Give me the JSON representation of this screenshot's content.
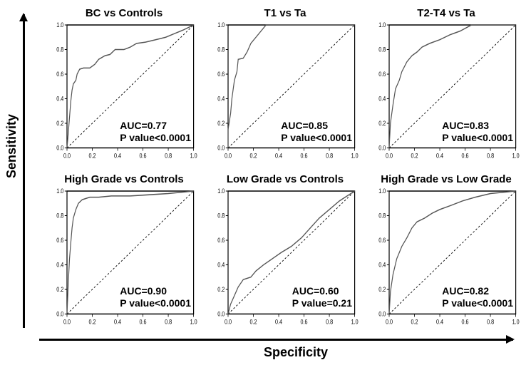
{
  "axis_labels": {
    "y": "Sensitivity",
    "x": "Specificity"
  },
  "colors": {
    "background": "#ffffff",
    "panel_border": "#000000",
    "roc_line": "#555555",
    "diagonal": "#000000",
    "text": "#000000"
  },
  "ticks": {
    "values": [
      0.0,
      0.2,
      0.4,
      0.6,
      0.8,
      1.0
    ],
    "labels": [
      "0.0",
      "0.2",
      "0.4",
      "0.6",
      "0.8",
      "1.0"
    ]
  },
  "line_width": {
    "roc": 1.5,
    "border": 1.5,
    "diagonal_dash": "3,3"
  },
  "panels": [
    {
      "title": "BC vs Controls",
      "auc": "AUC=0.77",
      "pvalue": "P value<0.0001",
      "type": "roc",
      "roc_points": [
        [
          0.0,
          0.0
        ],
        [
          0.01,
          0.12
        ],
        [
          0.02,
          0.25
        ],
        [
          0.03,
          0.38
        ],
        [
          0.04,
          0.47
        ],
        [
          0.05,
          0.52
        ],
        [
          0.07,
          0.55
        ],
        [
          0.08,
          0.6
        ],
        [
          0.1,
          0.64
        ],
        [
          0.13,
          0.65
        ],
        [
          0.18,
          0.65
        ],
        [
          0.22,
          0.68
        ],
        [
          0.25,
          0.72
        ],
        [
          0.3,
          0.75
        ],
        [
          0.34,
          0.76
        ],
        [
          0.38,
          0.8
        ],
        [
          0.45,
          0.8
        ],
        [
          0.5,
          0.82
        ],
        [
          0.55,
          0.85
        ],
        [
          0.62,
          0.86
        ],
        [
          0.7,
          0.88
        ],
        [
          0.78,
          0.9
        ],
        [
          0.85,
          0.93
        ],
        [
          0.92,
          0.96
        ],
        [
          1.0,
          1.0
        ]
      ]
    },
    {
      "title": "T1 vs Ta",
      "auc": "AUC=0.85",
      "pvalue": "P value<0.0001",
      "type": "roc",
      "roc_points": [
        [
          0.0,
          0.0
        ],
        [
          0.0,
          0.15
        ],
        [
          0.02,
          0.28
        ],
        [
          0.03,
          0.4
        ],
        [
          0.05,
          0.55
        ],
        [
          0.07,
          0.62
        ],
        [
          0.08,
          0.72
        ],
        [
          0.12,
          0.73
        ],
        [
          0.15,
          0.78
        ],
        [
          0.18,
          0.85
        ],
        [
          0.22,
          0.9
        ],
        [
          0.26,
          0.95
        ],
        [
          0.3,
          1.0
        ],
        [
          1.0,
          1.0
        ]
      ]
    },
    {
      "title": "T2-T4 vs Ta",
      "auc": "AUC=0.83",
      "pvalue": "P value<0.0001",
      "type": "roc",
      "roc_points": [
        [
          0.0,
          0.0
        ],
        [
          0.01,
          0.2
        ],
        [
          0.03,
          0.35
        ],
        [
          0.05,
          0.48
        ],
        [
          0.08,
          0.55
        ],
        [
          0.1,
          0.62
        ],
        [
          0.14,
          0.7
        ],
        [
          0.18,
          0.75
        ],
        [
          0.22,
          0.78
        ],
        [
          0.26,
          0.82
        ],
        [
          0.32,
          0.85
        ],
        [
          0.4,
          0.88
        ],
        [
          0.48,
          0.92
        ],
        [
          0.56,
          0.95
        ],
        [
          0.65,
          1.0
        ],
        [
          1.0,
          1.0
        ]
      ]
    },
    {
      "title": "High Grade vs Controls",
      "auc": "AUC=0.90",
      "pvalue": "P value<0.0001",
      "type": "roc",
      "roc_points": [
        [
          0.0,
          0.0
        ],
        [
          0.01,
          0.25
        ],
        [
          0.02,
          0.45
        ],
        [
          0.03,
          0.58
        ],
        [
          0.04,
          0.7
        ],
        [
          0.05,
          0.78
        ],
        [
          0.07,
          0.85
        ],
        [
          0.09,
          0.9
        ],
        [
          0.12,
          0.93
        ],
        [
          0.18,
          0.95
        ],
        [
          0.25,
          0.95
        ],
        [
          0.35,
          0.96
        ],
        [
          0.5,
          0.96
        ],
        [
          0.65,
          0.97
        ],
        [
          0.8,
          0.98
        ],
        [
          1.0,
          1.0
        ]
      ]
    },
    {
      "title": "Low Grade vs Controls",
      "auc": "AUC=0.60",
      "pvalue": "P value=0.21",
      "type": "roc",
      "roc_points": [
        [
          0.0,
          0.0
        ],
        [
          0.02,
          0.08
        ],
        [
          0.05,
          0.15
        ],
        [
          0.08,
          0.22
        ],
        [
          0.12,
          0.28
        ],
        [
          0.18,
          0.3
        ],
        [
          0.22,
          0.35
        ],
        [
          0.28,
          0.4
        ],
        [
          0.35,
          0.45
        ],
        [
          0.42,
          0.5
        ],
        [
          0.5,
          0.55
        ],
        [
          0.58,
          0.62
        ],
        [
          0.65,
          0.7
        ],
        [
          0.72,
          0.78
        ],
        [
          0.8,
          0.85
        ],
        [
          0.88,
          0.92
        ],
        [
          1.0,
          1.0
        ]
      ]
    },
    {
      "title": "High Grade vs Low Grade",
      "auc": "AUC=0.82",
      "pvalue": "P value<0.0001",
      "type": "roc",
      "roc_points": [
        [
          0.0,
          0.0
        ],
        [
          0.01,
          0.18
        ],
        [
          0.03,
          0.32
        ],
        [
          0.06,
          0.45
        ],
        [
          0.1,
          0.55
        ],
        [
          0.14,
          0.62
        ],
        [
          0.18,
          0.7
        ],
        [
          0.22,
          0.75
        ],
        [
          0.28,
          0.78
        ],
        [
          0.34,
          0.82
        ],
        [
          0.4,
          0.85
        ],
        [
          0.48,
          0.88
        ],
        [
          0.58,
          0.92
        ],
        [
          0.68,
          0.95
        ],
        [
          0.8,
          0.98
        ],
        [
          1.0,
          1.0
        ]
      ]
    }
  ]
}
